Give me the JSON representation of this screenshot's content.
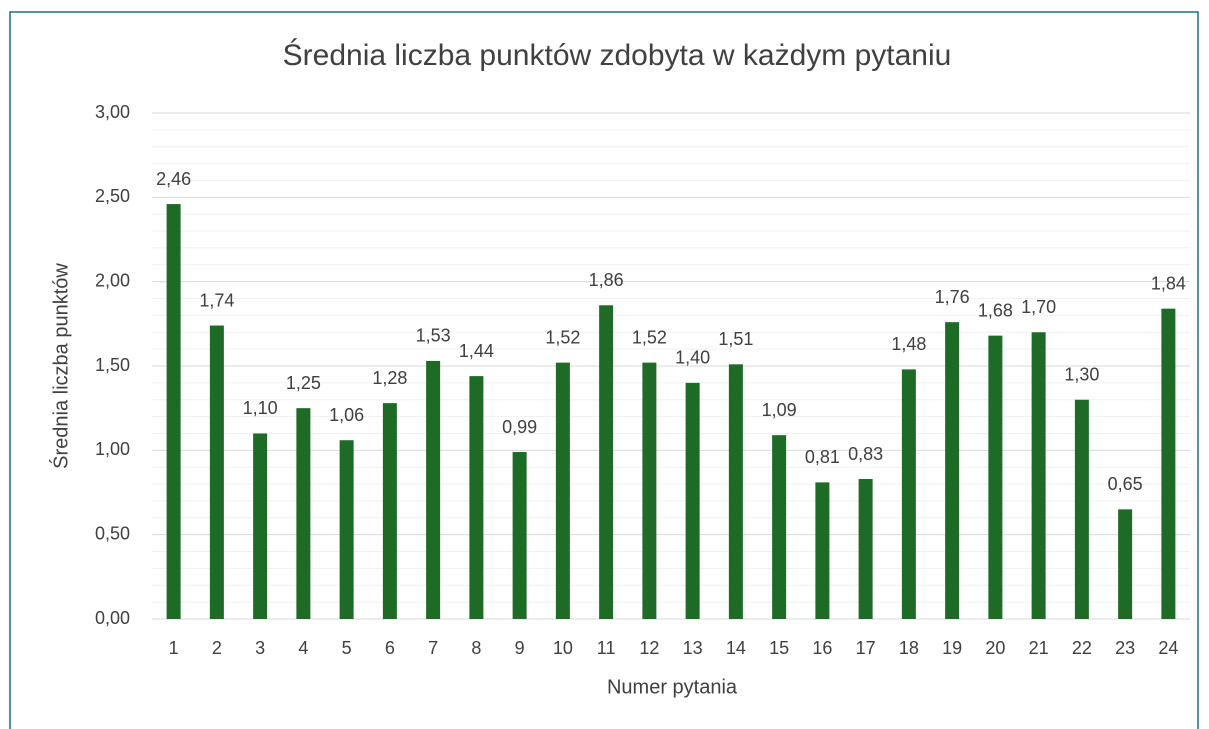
{
  "chart_data": {
    "type": "bar",
    "title": "Średnia liczba punktów zdobyta w każdym pytaniu",
    "x_label": "Numer pytania",
    "y_label": "Średnia liczba punktów",
    "categories": [
      "1",
      "2",
      "3",
      "4",
      "5",
      "6",
      "7",
      "8",
      "9",
      "10",
      "11",
      "12",
      "13",
      "14",
      "15",
      "16",
      "17",
      "18",
      "19",
      "20",
      "21",
      "22",
      "23",
      "24"
    ],
    "values": [
      2.46,
      1.74,
      1.1,
      1.25,
      1.06,
      1.28,
      1.53,
      1.44,
      0.99,
      1.52,
      1.86,
      1.52,
      1.4,
      1.51,
      1.09,
      0.81,
      0.83,
      1.48,
      1.76,
      1.68,
      1.7,
      1.3,
      0.65,
      1.84
    ],
    "value_labels": [
      "2,46",
      "1,74",
      "1,10",
      "1,25",
      "1,06",
      "1,28",
      "1,53",
      "1,44",
      "0,99",
      "1,52",
      "1,86",
      "1,52",
      "1,40",
      "1,51",
      "1,09",
      "0,81",
      "0,83",
      "1,48",
      "1,76",
      "1,68",
      "1,70",
      "1,30",
      "0,65",
      "1,84"
    ],
    "color": "#1e6b26",
    "ylim": [
      0,
      3
    ],
    "yticks": [
      {
        "value": 0,
        "label": "0,00"
      },
      {
        "value": 0.5,
        "label": "0,50"
      },
      {
        "value": 1,
        "label": "1,00"
      },
      {
        "value": 1.5,
        "label": "1,50"
      },
      {
        "value": 2,
        "label": "2,00"
      },
      {
        "value": 2.5,
        "label": "2,50"
      },
      {
        "value": 3,
        "label": "3,00"
      }
    ],
    "minor_yticks": [
      0.1,
      0.2,
      0.3,
      0.4,
      0.6,
      0.7,
      0.8,
      0.9,
      1.1,
      1.2,
      1.3,
      1.4,
      1.6,
      1.7,
      1.8,
      1.9,
      2.1,
      2.2,
      2.3,
      2.4,
      2.6,
      2.7,
      2.8,
      2.9
    ],
    "grid": true
  }
}
